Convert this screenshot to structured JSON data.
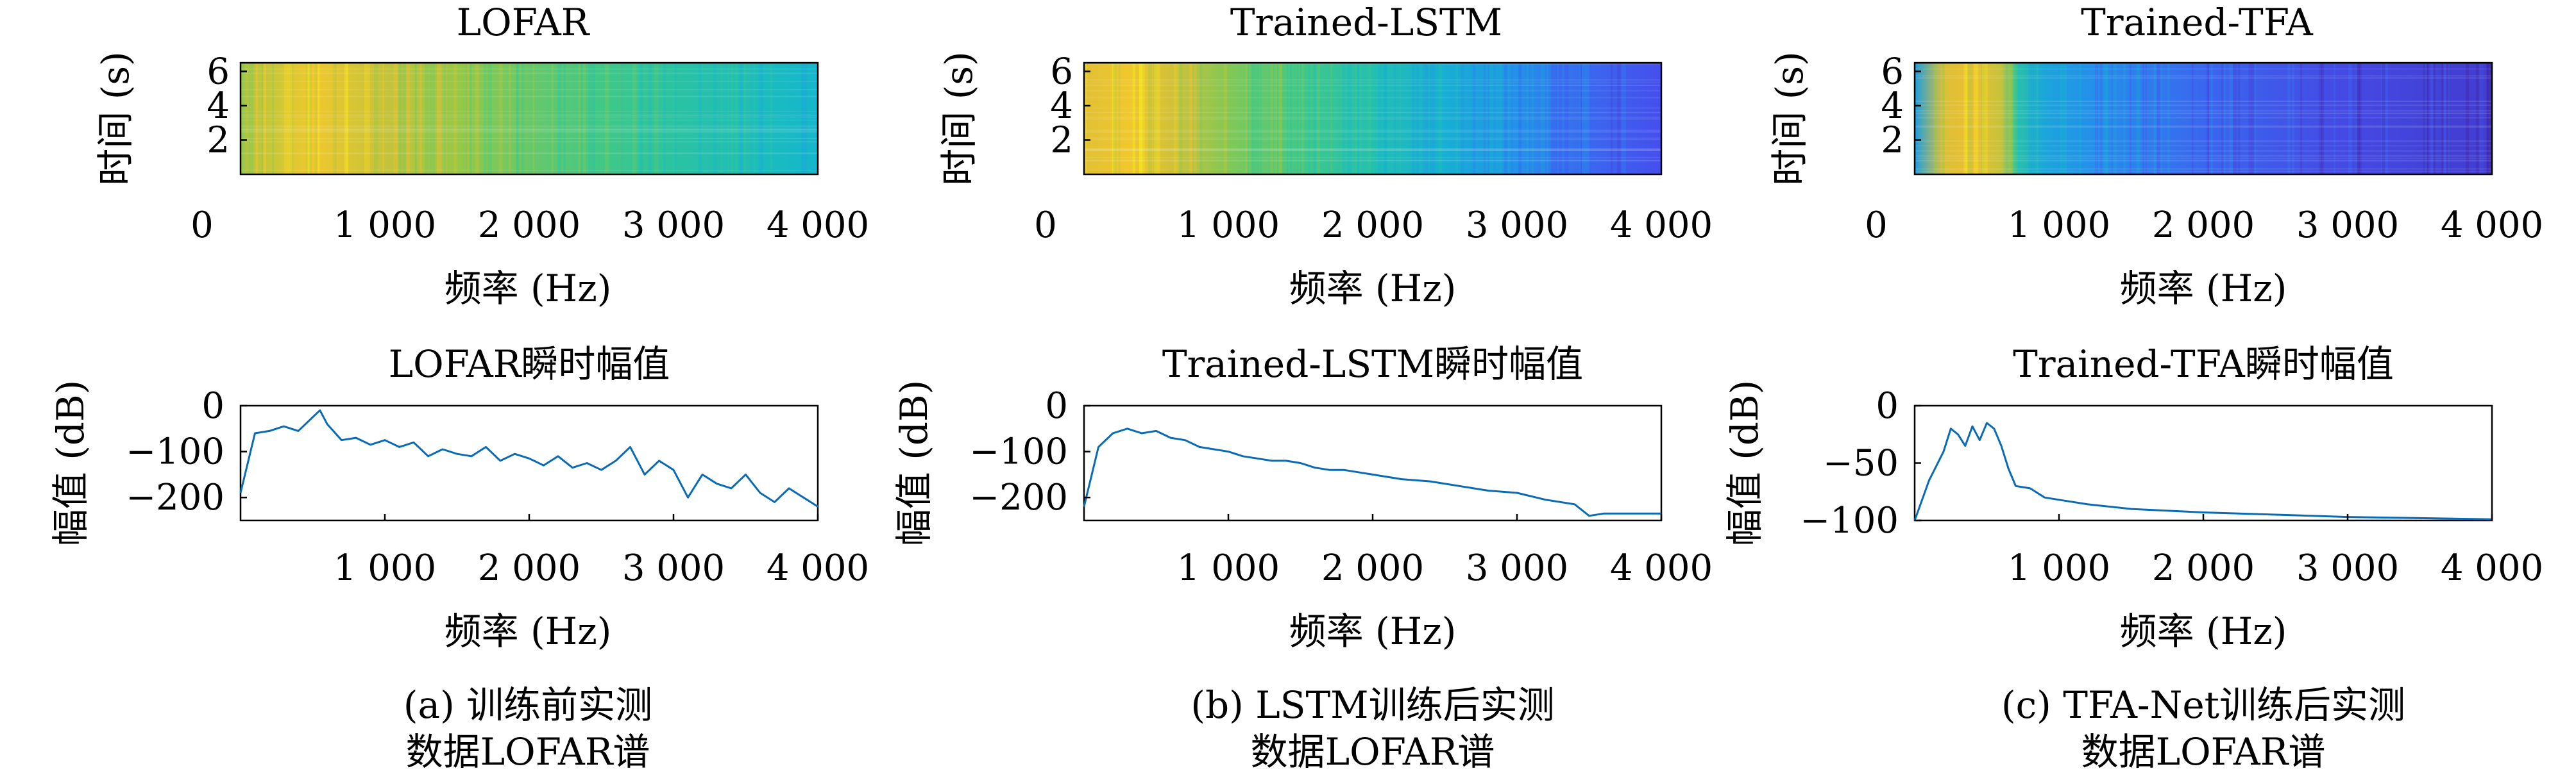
{
  "colors": {
    "line": "#0a6bb5",
    "axis": "#000000",
    "background": "#ffffff"
  },
  "captions": [
    {
      "line1": "(a) 训练前实测",
      "line2": "数据LOFAR谱"
    },
    {
      "line1": "(b) LSTM训练后实测",
      "line2": "数据LOFAR谱"
    },
    {
      "line1": "(c) TFA-Net训练后实测",
      "line2": "数据LOFAR谱"
    }
  ],
  "chart_data": [
    {
      "type": "heatmap",
      "title": "LOFAR",
      "xlabel": "频率 (Hz)",
      "ylabel": "时间 (s)",
      "xlim": [
        0,
        4000
      ],
      "ylim": [
        0,
        6.5
      ],
      "xticks": [
        0,
        1000,
        2000,
        3000,
        4000
      ],
      "xtick_labels": [
        "0",
        "1 000",
        "2 000",
        "3 000",
        "4 000"
      ],
      "yticks": [
        2,
        4,
        6
      ],
      "ytick_labels": [
        "2",
        "4",
        "6"
      ],
      "colormap": "parula",
      "intensity_profile": {
        "freq": [
          0,
          500,
          1000,
          1500,
          2000,
          2500,
          3000,
          3500,
          4000
        ],
        "level": [
          0.78,
          0.9,
          0.82,
          0.75,
          0.68,
          0.62,
          0.56,
          0.5,
          0.45
        ]
      }
    },
    {
      "type": "heatmap",
      "title": "Trained-LSTM",
      "xlabel": "频率 (Hz)",
      "ylabel": "时间 (s)",
      "xlim": [
        0,
        4000
      ],
      "ylim": [
        0,
        6.5
      ],
      "xticks": [
        0,
        1000,
        2000,
        3000,
        4000
      ],
      "xtick_labels": [
        "0",
        "1 000",
        "2 000",
        "3 000",
        "4 000"
      ],
      "yticks": [
        2,
        4,
        6
      ],
      "ytick_labels": [
        "2",
        "4",
        "6"
      ],
      "colormap": "parula",
      "intensity_profile": {
        "freq": [
          0,
          300,
          600,
          1000,
          1500,
          2000,
          2500,
          3000,
          3500,
          4000
        ],
        "level": [
          0.86,
          0.9,
          0.84,
          0.72,
          0.62,
          0.52,
          0.42,
          0.3,
          0.2,
          0.14
        ]
      }
    },
    {
      "type": "heatmap",
      "title": "Trained-TFA",
      "xlabel": "频率 (Hz)",
      "ylabel": "时间 (s)",
      "xlim": [
        0,
        4000
      ],
      "ylim": [
        0,
        6.5
      ],
      "xticks": [
        0,
        1000,
        2000,
        3000,
        4000
      ],
      "xtick_labels": [
        "0",
        "1 000",
        "2 000",
        "3 000",
        "4 000"
      ],
      "yticks": [
        2,
        4,
        6
      ],
      "ytick_labels": [
        "2",
        "4",
        "6"
      ],
      "colormap": "parula",
      "intensity_profile": {
        "freq": [
          0,
          200,
          400,
          600,
          700,
          900,
          1200,
          2000,
          3000,
          4000
        ],
        "level": [
          0.35,
          0.85,
          0.88,
          0.82,
          0.55,
          0.38,
          0.3,
          0.2,
          0.12,
          0.08
        ]
      }
    },
    {
      "type": "line",
      "title": "LOFAR瞬时幅值",
      "xlabel": "频率 (Hz)",
      "ylabel": "幅值 (dB)",
      "xlim": [
        0,
        4000
      ],
      "ylim": [
        -250,
        0
      ],
      "xticks": [
        1000,
        2000,
        3000,
        4000
      ],
      "xtick_labels": [
        "1 000",
        "2 000",
        "3 000",
        "4 000"
      ],
      "yticks": [
        0,
        -100,
        -200
      ],
      "ytick_labels": [
        "0",
        "−100",
        "−200"
      ],
      "x": [
        0,
        100,
        200,
        300,
        400,
        500,
        550,
        600,
        700,
        800,
        900,
        1000,
        1100,
        1200,
        1300,
        1400,
        1500,
        1600,
        1700,
        1800,
        1900,
        2000,
        2100,
        2200,
        2300,
        2400,
        2500,
        2600,
        2700,
        2800,
        2900,
        3000,
        3100,
        3200,
        3300,
        3400,
        3500,
        3600,
        3700,
        3800,
        3900,
        4000
      ],
      "y": [
        -190,
        -60,
        -55,
        -45,
        -55,
        -25,
        -10,
        -40,
        -75,
        -70,
        -85,
        -75,
        -90,
        -80,
        -110,
        -95,
        -105,
        -110,
        -90,
        -120,
        -105,
        -115,
        -130,
        -110,
        -135,
        -125,
        -140,
        -120,
        -90,
        -150,
        -120,
        -140,
        -200,
        -150,
        -170,
        -180,
        -150,
        -190,
        -210,
        -180,
        -200,
        -220
      ]
    },
    {
      "type": "line",
      "title": "Trained-LSTM瞬时幅值",
      "xlabel": "频率 (Hz)",
      "ylabel": "幅值 (dB)",
      "xlim": [
        0,
        4000
      ],
      "ylim": [
        -250,
        0
      ],
      "xticks": [
        1000,
        2000,
        3000,
        4000
      ],
      "xtick_labels": [
        "1 000",
        "2 000",
        "3 000",
        "4 000"
      ],
      "yticks": [
        0,
        -100,
        -200
      ],
      "ytick_labels": [
        "0",
        "−100",
        "−200"
      ],
      "x": [
        0,
        100,
        200,
        300,
        400,
        500,
        600,
        700,
        800,
        900,
        1000,
        1100,
        1200,
        1300,
        1400,
        1500,
        1600,
        1700,
        1800,
        1900,
        2000,
        2200,
        2400,
        2600,
        2800,
        3000,
        3200,
        3400,
        3500,
        3600,
        3800,
        4000
      ],
      "y": [
        -220,
        -90,
        -60,
        -50,
        -60,
        -55,
        -70,
        -75,
        -90,
        -95,
        -100,
        -110,
        -115,
        -120,
        -120,
        -125,
        -135,
        -140,
        -140,
        -145,
        -150,
        -160,
        -165,
        -175,
        -185,
        -190,
        -205,
        -215,
        -240,
        -235,
        -235,
        -235
      ]
    },
    {
      "type": "line",
      "title": "Trained-TFA瞬时幅值",
      "xlabel": "频率 (Hz)",
      "ylabel": "幅值 (dB)",
      "xlim": [
        0,
        4000
      ],
      "ylim": [
        -100,
        0
      ],
      "xticks": [
        1000,
        2000,
        3000,
        4000
      ],
      "xtick_labels": [
        "1 000",
        "2 000",
        "3 000",
        "4 000"
      ],
      "yticks": [
        0,
        -50,
        -100
      ],
      "ytick_labels": [
        "0",
        "−50",
        "−100"
      ],
      "x": [
        0,
        100,
        200,
        250,
        300,
        350,
        400,
        450,
        500,
        550,
        600,
        650,
        700,
        800,
        900,
        1000,
        1200,
        1500,
        2000,
        2500,
        3000,
        3500,
        4000
      ],
      "y": [
        -100,
        -65,
        -40,
        -20,
        -25,
        -35,
        -18,
        -30,
        -15,
        -20,
        -35,
        -55,
        -70,
        -72,
        -80,
        -82,
        -86,
        -90,
        -93,
        -95,
        -97,
        -98,
        -99
      ]
    }
  ]
}
